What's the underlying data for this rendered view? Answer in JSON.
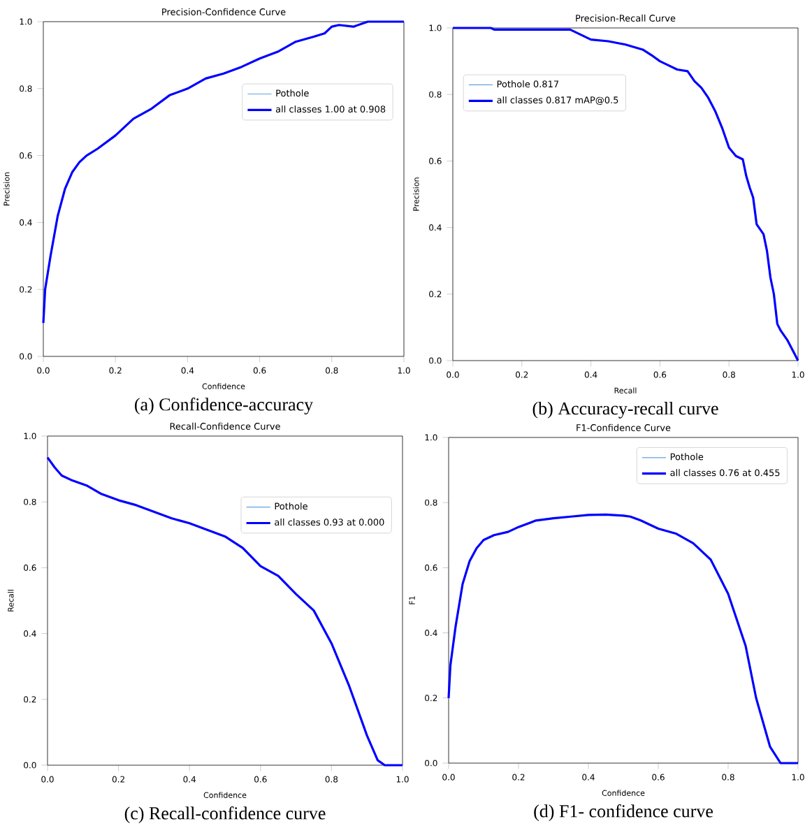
{
  "chart_data": [
    {
      "type": "line",
      "title": "Precision-Confidence Curve",
      "xlabel": "Confidence",
      "ylabel": "Precision",
      "annotations": [
        "(a) Confidence-accuracy"
      ],
      "legend": "center right",
      "xlim": [
        0,
        1
      ],
      "ylim": [
        0,
        1
      ],
      "xticks": [
        {
          "value": 0,
          "label": "0.0"
        },
        {
          "value": 0.2,
          "label": "0.2"
        },
        {
          "value": 0.4,
          "label": "0.4"
        },
        {
          "value": 0.6,
          "label": "0.6"
        },
        {
          "value": 0.8,
          "label": "0.8"
        },
        {
          "value": 1,
          "label": "1.0"
        }
      ],
      "yticks": [
        {
          "value": 0,
          "label": "0.0"
        },
        {
          "value": 0.2,
          "label": "0.2"
        },
        {
          "value": 0.4,
          "label": "0.4"
        },
        {
          "value": 0.6,
          "label": "0.6"
        },
        {
          "value": 0.8,
          "label": "0.8"
        },
        {
          "value": 1,
          "label": "1.0"
        }
      ],
      "x": [
        0,
        0.005,
        0.02,
        0.04,
        0.06,
        0.08,
        0.1,
        0.12,
        0.15,
        0.2,
        0.25,
        0.3,
        0.35,
        0.4,
        0.45,
        0.5,
        0.55,
        0.6,
        0.65,
        0.7,
        0.75,
        0.78,
        0.8,
        0.82,
        0.86,
        0.9,
        1.0
      ],
      "series": [
        {
          "name": "Pothole",
          "color": "#5fa2dd",
          "values": [
            null,
            null,
            null,
            null,
            null,
            null,
            null,
            null,
            null,
            null,
            null,
            null,
            null,
            null,
            null,
            null,
            null,
            null,
            null,
            null,
            null,
            null,
            null,
            null,
            null,
            null,
            null
          ]
        },
        {
          "name": "all classes 1.00 at 0.908",
          "color": "#0000ff",
          "values": [
            0.1,
            0.2,
            0.3,
            0.42,
            0.5,
            0.55,
            0.58,
            0.6,
            0.62,
            0.66,
            0.71,
            0.74,
            0.78,
            0.8,
            0.83,
            0.845,
            0.865,
            0.89,
            0.91,
            0.94,
            0.955,
            0.965,
            0.985,
            0.99,
            0.985,
            1.0,
            1.0
          ]
        }
      ]
    },
    {
      "type": "line",
      "title": "Precision-Recall Curve",
      "xlabel": "Recall",
      "ylabel": "Precision",
      "annotations": [
        "(b) Accuracy-recall curve"
      ],
      "legend": "top left",
      "xlim": [
        0,
        1
      ],
      "ylim": [
        0,
        1
      ],
      "xticks": [
        {
          "value": 0,
          "label": "0.0"
        },
        {
          "value": 0.2,
          "label": "0.2"
        },
        {
          "value": 0.4,
          "label": "0.4"
        },
        {
          "value": 0.6,
          "label": "0.6"
        },
        {
          "value": 0.8,
          "label": "0.8"
        },
        {
          "value": 1,
          "label": "1.0"
        }
      ],
      "yticks": [
        {
          "value": 0,
          "label": "0.0"
        },
        {
          "value": 0.2,
          "label": "0.2"
        },
        {
          "value": 0.4,
          "label": "0.4"
        },
        {
          "value": 0.6,
          "label": "0.6"
        },
        {
          "value": 0.8,
          "label": "0.8"
        },
        {
          "value": 1,
          "label": "1.0"
        }
      ],
      "x": [
        0,
        0.11,
        0.12,
        0.34,
        0.36,
        0.38,
        0.4,
        0.45,
        0.5,
        0.55,
        0.58,
        0.6,
        0.62,
        0.65,
        0.68,
        0.7,
        0.72,
        0.74,
        0.76,
        0.78,
        0.8,
        0.82,
        0.84,
        0.85,
        0.86,
        0.87,
        0.88,
        0.9,
        0.91,
        0.92,
        0.93,
        0.94,
        0.95,
        0.97,
        1.0
      ],
      "series": [
        {
          "name": "Pothole 0.817",
          "color": "#5fa2dd",
          "values": [
            null,
            null,
            null,
            null,
            null,
            null,
            null,
            null,
            null,
            null,
            null,
            null,
            null,
            null,
            null,
            null,
            null,
            null,
            null,
            null,
            null,
            null,
            null,
            null,
            null,
            null,
            null,
            null,
            null,
            null,
            null,
            null,
            null,
            null,
            null
          ]
        },
        {
          "name": "all classes 0.817 mAP@0.5",
          "color": "#0000ff",
          "values": [
            1,
            1,
            0.995,
            0.995,
            0.985,
            0.975,
            0.965,
            0.96,
            0.95,
            0.935,
            0.915,
            0.9,
            0.89,
            0.875,
            0.87,
            0.84,
            0.82,
            0.79,
            0.75,
            0.7,
            0.64,
            0.615,
            0.605,
            0.555,
            0.52,
            0.49,
            0.41,
            0.38,
            0.33,
            0.25,
            0.2,
            0.11,
            0.09,
            0.06,
            0.0
          ]
        }
      ]
    },
    {
      "type": "line",
      "title": "Recall-Confidence Curve",
      "xlabel": "Confidence",
      "ylabel": "Recall",
      "annotations": [
        "(c) Recall-confidence curve"
      ],
      "legend": "center right",
      "xlim": [
        0,
        1
      ],
      "ylim": [
        0,
        1
      ],
      "xticks": [
        {
          "value": 0,
          "label": "0.0"
        },
        {
          "value": 0.2,
          "label": "0.2"
        },
        {
          "value": 0.4,
          "label": "0.4"
        },
        {
          "value": 0.6,
          "label": "0.6"
        },
        {
          "value": 0.8,
          "label": "0.8"
        },
        {
          "value": 1,
          "label": "1.0"
        }
      ],
      "yticks": [
        {
          "value": 0,
          "label": "0.0"
        },
        {
          "value": 0.2,
          "label": "0.2"
        },
        {
          "value": 0.4,
          "label": "0.4"
        },
        {
          "value": 0.6,
          "label": "0.6"
        },
        {
          "value": 0.8,
          "label": "0.8"
        },
        {
          "value": 1,
          "label": "1.0"
        }
      ],
      "x": [
        0,
        0.02,
        0.04,
        0.07,
        0.11,
        0.15,
        0.2,
        0.25,
        0.3,
        0.35,
        0.4,
        0.45,
        0.5,
        0.55,
        0.6,
        0.65,
        0.7,
        0.75,
        0.8,
        0.85,
        0.9,
        0.93,
        0.95,
        1.0
      ],
      "series": [
        {
          "name": "Pothole",
          "color": "#5fa2dd",
          "values": [
            null,
            null,
            null,
            null,
            null,
            null,
            null,
            null,
            null,
            null,
            null,
            null,
            null,
            null,
            null,
            null,
            null,
            null,
            null,
            null,
            null,
            null,
            null,
            null
          ]
        },
        {
          "name": "all classes 0.93 at 0.000",
          "color": "#0000ff",
          "values": [
            0.935,
            0.905,
            0.88,
            0.865,
            0.85,
            0.825,
            0.805,
            0.79,
            0.77,
            0.75,
            0.735,
            0.715,
            0.695,
            0.66,
            0.605,
            0.575,
            0.52,
            0.47,
            0.37,
            0.24,
            0.09,
            0.015,
            0.0,
            0.0
          ]
        }
      ]
    },
    {
      "type": "line",
      "title": "F1-Confidence Curve",
      "xlabel": "Confidence",
      "ylabel": "F1",
      "annotations": [
        "(d) F1- confidence curve"
      ],
      "legend": "top right",
      "xlim": [
        0,
        1
      ],
      "ylim": [
        0,
        1
      ],
      "xticks": [
        {
          "value": 0,
          "label": "0.0"
        },
        {
          "value": 0.2,
          "label": "0.2"
        },
        {
          "value": 0.4,
          "label": "0.4"
        },
        {
          "value": 0.6,
          "label": "0.6"
        },
        {
          "value": 0.8,
          "label": "0.8"
        },
        {
          "value": 1,
          "label": "1.0"
        }
      ],
      "yticks": [
        {
          "value": 0,
          "label": "0.0"
        },
        {
          "value": 0.2,
          "label": "0.2"
        },
        {
          "value": 0.4,
          "label": "0.4"
        },
        {
          "value": 0.6,
          "label": "0.6"
        },
        {
          "value": 0.8,
          "label": "0.8"
        },
        {
          "value": 1,
          "label": "1.0"
        }
      ],
      "x": [
        0,
        0.005,
        0.02,
        0.04,
        0.06,
        0.08,
        0.1,
        0.13,
        0.17,
        0.2,
        0.25,
        0.3,
        0.35,
        0.4,
        0.45,
        0.5,
        0.52,
        0.55,
        0.6,
        0.65,
        0.7,
        0.75,
        0.8,
        0.85,
        0.88,
        0.92,
        0.95,
        1.0
      ],
      "series": [
        {
          "name": "Pothole",
          "color": "#5fa2dd",
          "values": [
            null,
            null,
            null,
            null,
            null,
            null,
            null,
            null,
            null,
            null,
            null,
            null,
            null,
            null,
            null,
            null,
            null,
            null,
            null,
            null,
            null,
            null,
            null,
            null,
            null,
            null,
            null,
            null
          ]
        },
        {
          "name": "all classes 0.76 at 0.455",
          "color": "#0000ff",
          "values": [
            0.2,
            0.3,
            0.42,
            0.55,
            0.62,
            0.66,
            0.685,
            0.7,
            0.71,
            0.725,
            0.745,
            0.752,
            0.757,
            0.762,
            0.763,
            0.76,
            0.757,
            0.745,
            0.72,
            0.705,
            0.675,
            0.625,
            0.52,
            0.36,
            0.2,
            0.05,
            0.0,
            0.0
          ]
        }
      ]
    }
  ]
}
